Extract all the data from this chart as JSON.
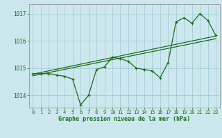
{
  "title": "Graphe pression niveau de la mer (hPa)",
  "background_color": "#cce8ee",
  "grid_color": "#aacfd8",
  "line_color": "#1a6b1a",
  "x_ticks": [
    0,
    1,
    2,
    3,
    4,
    5,
    6,
    7,
    8,
    9,
    10,
    11,
    12,
    13,
    14,
    15,
    16,
    17,
    18,
    19,
    20,
    21,
    22,
    23
  ],
  "ylim": [
    1013.55,
    1017.35
  ],
  "yticks": [
    1014,
    1015,
    1016,
    1017
  ],
  "series1": [
    1014.8,
    1014.8,
    1014.8,
    1014.75,
    1014.7,
    1014.6,
    1013.65,
    1014.0,
    1014.95,
    1015.05,
    1015.4,
    1015.35,
    1015.25,
    1015.0,
    1014.95,
    1014.9,
    1014.65,
    1015.2,
    1016.7,
    1016.85,
    1016.65,
    1017.0,
    1016.75,
    1016.2
  ],
  "trend1_x": [
    0,
    23
  ],
  "trend1_y": [
    1014.78,
    1016.18
  ],
  "trend2_x": [
    0,
    23
  ],
  "trend2_y": [
    1014.72,
    1016.08
  ],
  "figsize": [
    3.2,
    2.0
  ],
  "dpi": 100
}
